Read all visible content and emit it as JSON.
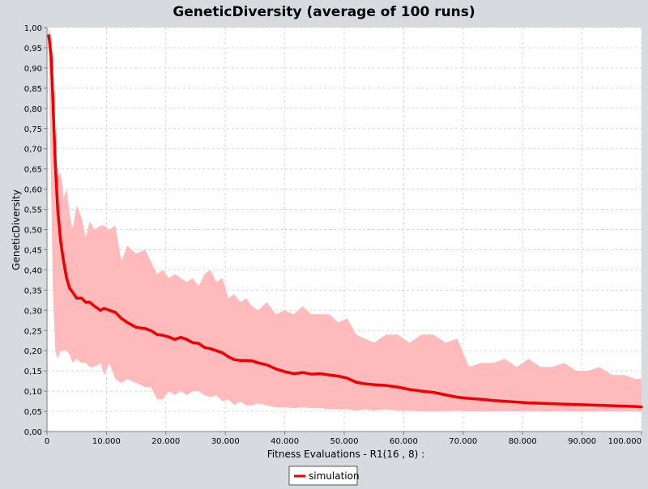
{
  "chart_data": {
    "type": "area",
    "title": "GeneticDiversity (average of 100 runs)",
    "xlabel": "Fitness Evaluations - R1(16 , 8) :",
    "ylabel": "GeneticDiversity",
    "xlim": [
      0,
      100000
    ],
    "ylim": [
      0,
      1.0
    ],
    "grid": true,
    "legend_placement": "bottom-center",
    "colors": {
      "background": "#d7dbe0",
      "plot_background": "#ffffff",
      "grid": "#d8d8d8",
      "series": "#ee0000",
      "band": "#ffbbbb",
      "axis_text": "#000000"
    },
    "x_ticks": [
      {
        "value": 0,
        "label": "0"
      },
      {
        "value": 10000,
        "label": "10.000"
      },
      {
        "value": 20000,
        "label": "20.000"
      },
      {
        "value": 30000,
        "label": "30.000"
      },
      {
        "value": 40000,
        "label": "40.000"
      },
      {
        "value": 50000,
        "label": "50.000"
      },
      {
        "value": 60000,
        "label": "60.000"
      },
      {
        "value": 70000,
        "label": "70.000"
      },
      {
        "value": 80000,
        "label": "80.000"
      },
      {
        "value": 90000,
        "label": "90.000"
      },
      {
        "value": 100000,
        "label": "100.000"
      }
    ],
    "y_ticks": [
      {
        "value": 0.0,
        "label": "0,00"
      },
      {
        "value": 0.05,
        "label": "0,05"
      },
      {
        "value": 0.1,
        "label": "0,10"
      },
      {
        "value": 0.15,
        "label": "0,15"
      },
      {
        "value": 0.2,
        "label": "0,20"
      },
      {
        "value": 0.25,
        "label": "0,25"
      },
      {
        "value": 0.3,
        "label": "0,30"
      },
      {
        "value": 0.35,
        "label": "0,35"
      },
      {
        "value": 0.4,
        "label": "0,40"
      },
      {
        "value": 0.45,
        "label": "0,45"
      },
      {
        "value": 0.5,
        "label": "0,50"
      },
      {
        "value": 0.55,
        "label": "0,55"
      },
      {
        "value": 0.6,
        "label": "0,60"
      },
      {
        "value": 0.65,
        "label": "0,65"
      },
      {
        "value": 0.7,
        "label": "0,70"
      },
      {
        "value": 0.75,
        "label": "0,75"
      },
      {
        "value": 0.8,
        "label": "0,80"
      },
      {
        "value": 0.85,
        "label": "0,85"
      },
      {
        "value": 0.9,
        "label": "0,90"
      },
      {
        "value": 0.95,
        "label": "0,95"
      },
      {
        "value": 1.0,
        "label": "1,00"
      }
    ],
    "series": [
      {
        "name": "simulation",
        "x": [
          300,
          700,
          1000,
          1400,
          1800,
          2300,
          2800,
          3300,
          3800,
          4300,
          5000,
          5800,
          6500,
          7200,
          8000,
          9000,
          9600,
          10500,
          11500,
          12500,
          13500,
          15000,
          16500,
          17500,
          18500,
          19500,
          20500,
          21500,
          22500,
          23500,
          24500,
          25500,
          26500,
          27500,
          28500,
          29500,
          30500,
          31500,
          32500,
          33500,
          34500,
          35500,
          37000,
          38500,
          40000,
          41500,
          43000,
          44500,
          46000,
          47500,
          49000,
          50500,
          52000,
          53500,
          55000,
          57000,
          59000,
          61000,
          63000,
          65000,
          67000,
          69000,
          71000,
          73000,
          75000,
          77000,
          79000,
          81000,
          83000,
          85000,
          87000,
          89000,
          91000,
          93000,
          95000,
          97000,
          99000,
          100000
        ],
        "values": [
          0.98,
          0.93,
          0.82,
          0.66,
          0.55,
          0.47,
          0.42,
          0.38,
          0.355,
          0.345,
          0.33,
          0.33,
          0.32,
          0.32,
          0.31,
          0.3,
          0.305,
          0.3,
          0.295,
          0.28,
          0.27,
          0.258,
          0.255,
          0.25,
          0.24,
          0.238,
          0.234,
          0.228,
          0.233,
          0.228,
          0.22,
          0.218,
          0.208,
          0.205,
          0.2,
          0.195,
          0.185,
          0.178,
          0.176,
          0.176,
          0.175,
          0.17,
          0.165,
          0.155,
          0.148,
          0.143,
          0.146,
          0.142,
          0.143,
          0.14,
          0.137,
          0.132,
          0.122,
          0.118,
          0.116,
          0.114,
          0.11,
          0.104,
          0.1,
          0.097,
          0.091,
          0.085,
          0.082,
          0.08,
          0.077,
          0.075,
          0.073,
          0.071,
          0.07,
          0.069,
          0.068,
          0.067,
          0.066,
          0.065,
          0.064,
          0.063,
          0.062,
          0.061
        ],
        "upper": [
          1.0,
          0.98,
          0.9,
          0.75,
          0.63,
          0.64,
          0.58,
          0.6,
          0.54,
          0.5,
          0.56,
          0.53,
          0.48,
          0.52,
          0.5,
          0.51,
          0.51,
          0.5,
          0.51,
          0.42,
          0.46,
          0.44,
          0.45,
          0.42,
          0.39,
          0.4,
          0.38,
          0.39,
          0.38,
          0.37,
          0.38,
          0.36,
          0.39,
          0.4,
          0.37,
          0.38,
          0.33,
          0.34,
          0.32,
          0.33,
          0.31,
          0.3,
          0.32,
          0.29,
          0.3,
          0.29,
          0.31,
          0.29,
          0.29,
          0.29,
          0.27,
          0.28,
          0.24,
          0.23,
          0.22,
          0.24,
          0.24,
          0.22,
          0.24,
          0.24,
          0.22,
          0.23,
          0.16,
          0.17,
          0.17,
          0.18,
          0.16,
          0.18,
          0.16,
          0.16,
          0.17,
          0.15,
          0.15,
          0.16,
          0.14,
          0.14,
          0.13,
          0.13
        ],
        "lower": [
          0.92,
          0.6,
          0.35,
          0.2,
          0.18,
          0.2,
          0.2,
          0.2,
          0.19,
          0.17,
          0.18,
          0.17,
          0.17,
          0.16,
          0.16,
          0.17,
          0.14,
          0.17,
          0.13,
          0.12,
          0.13,
          0.12,
          0.11,
          0.11,
          0.08,
          0.08,
          0.1,
          0.09,
          0.1,
          0.09,
          0.1,
          0.1,
          0.09,
          0.085,
          0.09,
          0.075,
          0.08,
          0.065,
          0.075,
          0.065,
          0.065,
          0.07,
          0.065,
          0.06,
          0.06,
          0.058,
          0.06,
          0.058,
          0.058,
          0.055,
          0.055,
          0.055,
          0.052,
          0.055,
          0.052,
          0.055,
          0.052,
          0.052,
          0.05,
          0.05,
          0.05,
          0.052,
          0.05,
          0.05,
          0.05,
          0.05,
          0.05,
          0.05,
          0.05,
          0.05,
          0.05,
          0.05,
          0.05,
          0.05,
          0.05,
          0.05,
          0.05,
          0.05
        ]
      }
    ]
  }
}
